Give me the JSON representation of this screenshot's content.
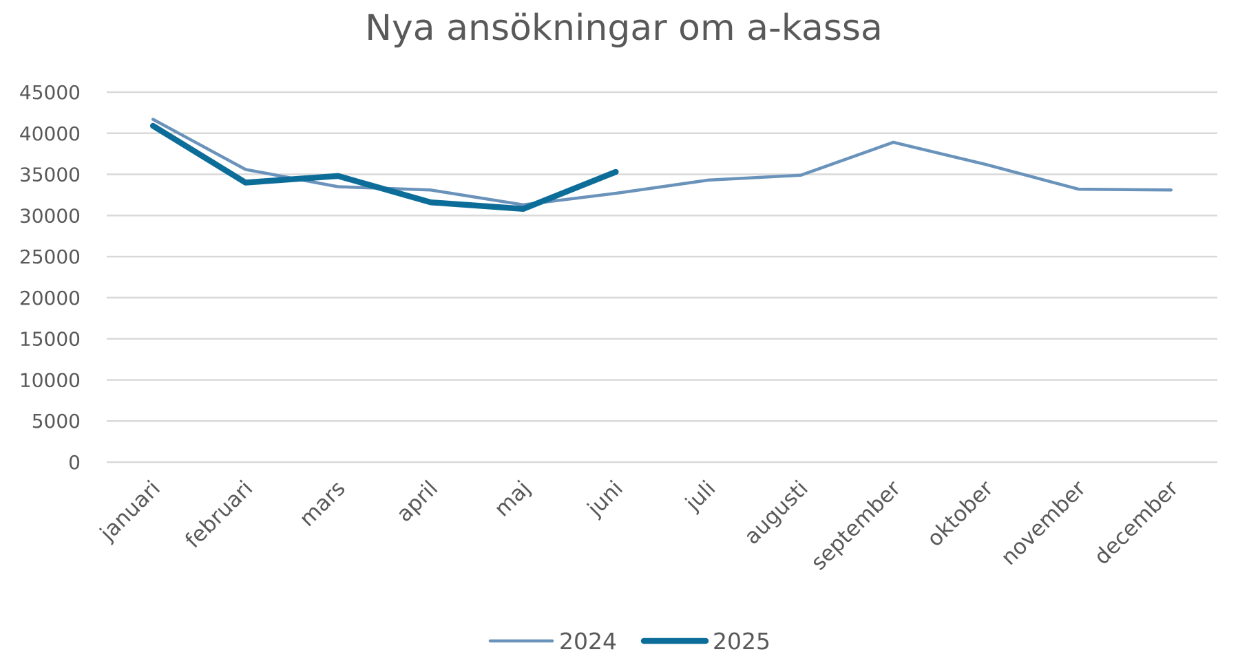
{
  "chart_data": {
    "type": "line",
    "title": "Nya ansökningar om a-kassa",
    "xlabel": "",
    "ylabel": "",
    "categories": [
      "januari",
      "februari",
      "mars",
      "april",
      "maj",
      "juni",
      "juli",
      "augusti",
      "september",
      "oktober",
      "november",
      "december"
    ],
    "ylim": [
      0,
      45000
    ],
    "yticks": [
      "0",
      "5000",
      "10000",
      "15000",
      "20000",
      "25000",
      "30000",
      "35000",
      "40000",
      "45000"
    ],
    "grid": true,
    "legend_position": "bottom",
    "series": [
      {
        "name": "2024",
        "color": "#6a93bb",
        "values": [
          41700,
          35600,
          33500,
          33100,
          31300,
          32700,
          34300,
          34900,
          38900,
          36200,
          33200,
          33100
        ]
      },
      {
        "name": "2025",
        "color": "#0d6d99",
        "values": [
          40900,
          34000,
          34800,
          31600,
          30800,
          35300,
          null,
          null,
          null,
          null,
          null,
          null
        ]
      }
    ]
  }
}
